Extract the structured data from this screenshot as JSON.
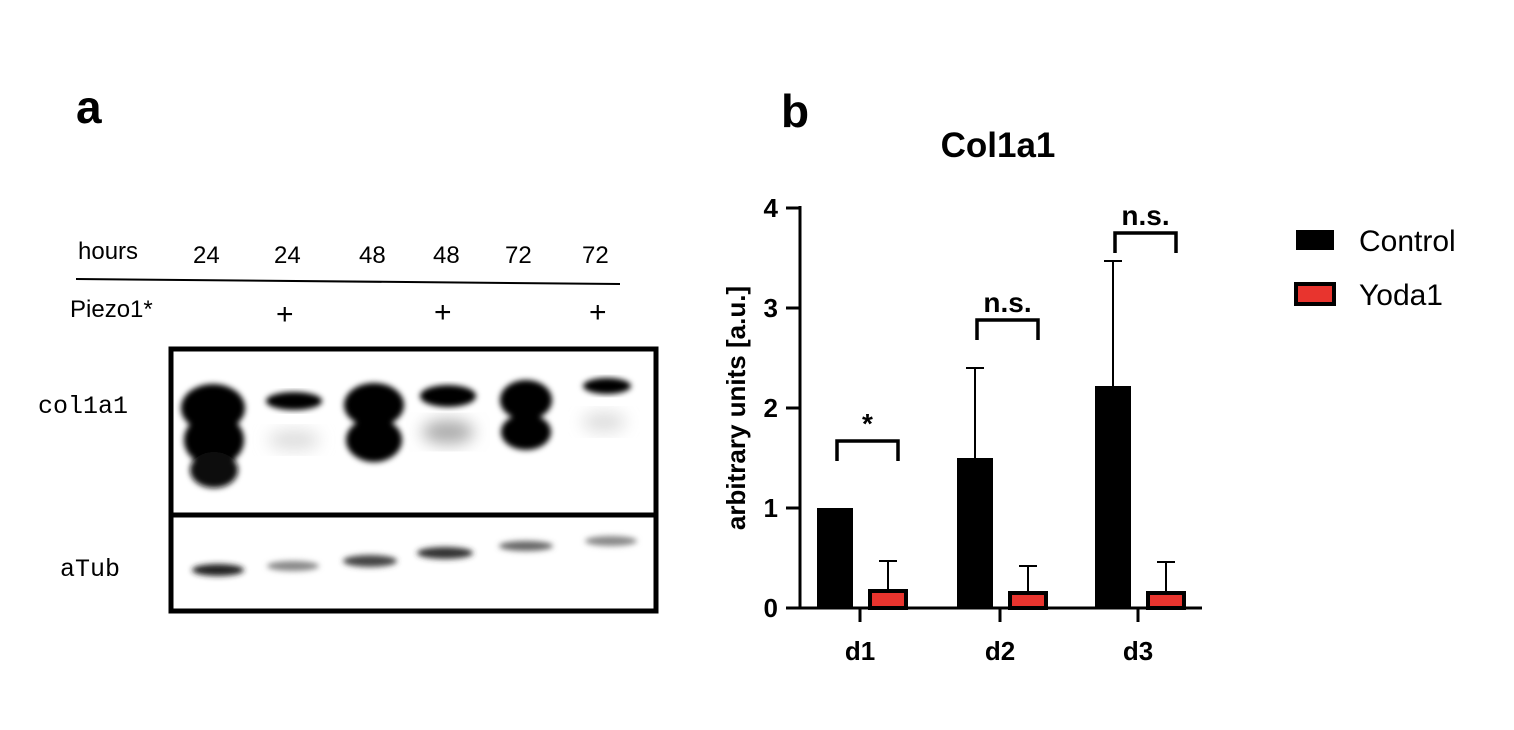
{
  "panel_a": {
    "letter": "a",
    "hours_label": "hours",
    "hours": [
      "24",
      "24",
      "48",
      "48",
      "72",
      "72"
    ],
    "piezo_label": "Piezo1*",
    "piezo": [
      "",
      "+",
      "",
      "+",
      "",
      "+"
    ],
    "blot_labels": [
      "col1a1",
      "aTub"
    ]
  },
  "panel_b": {
    "letter": "b"
  },
  "chart_data": {
    "type": "bar",
    "title": "Col1a1",
    "xlabel": "",
    "ylabel": "arbitrary units [a.u.]",
    "ylim": [
      0,
      4
    ],
    "yticks": [
      "0",
      "1",
      "2",
      "3",
      "4"
    ],
    "categories": [
      "d1",
      "d2",
      "d3"
    ],
    "series": [
      {
        "name": "Control",
        "color": "#000000",
        "values": [
          1.0,
          1.5,
          2.22
        ],
        "errors": [
          0,
          0.9,
          1.25
        ]
      },
      {
        "name": "Yoda1",
        "color": "#e8342e",
        "values": [
          0.17,
          0.15,
          0.15
        ],
        "errors": [
          0.3,
          0.27,
          0.31
        ]
      }
    ],
    "significance": [
      "*",
      "n.s.",
      "n.s."
    ],
    "legend_position": "right",
    "grid": false
  }
}
